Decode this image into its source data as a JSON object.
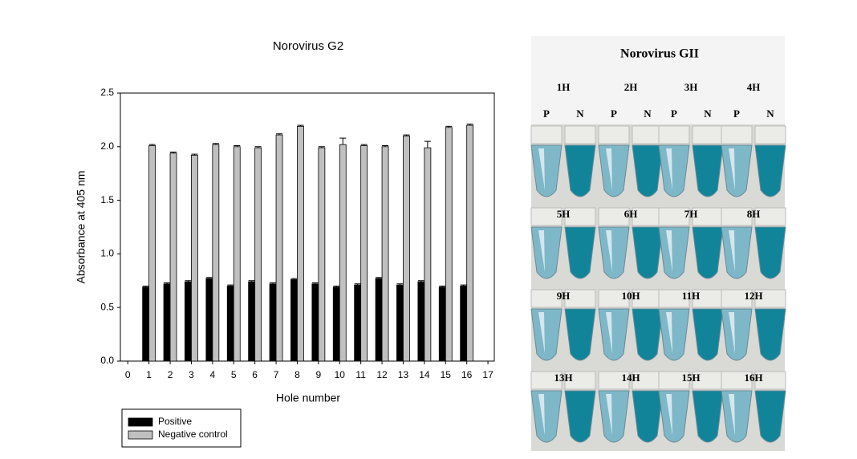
{
  "chart_data": {
    "type": "bar",
    "title": "Norovirus G2",
    "xlabel": "Hole number",
    "ylabel": "Absorbance at 405 nm",
    "x": [
      1,
      2,
      3,
      4,
      5,
      6,
      7,
      8,
      9,
      10,
      11,
      12,
      13,
      14,
      15,
      16
    ],
    "series": [
      {
        "name": "Positive",
        "color": "#000000",
        "values": [
          0.69,
          0.72,
          0.74,
          0.77,
          0.7,
          0.74,
          0.72,
          0.76,
          0.72,
          0.69,
          0.71,
          0.77,
          0.71,
          0.74,
          0.69,
          0.7
        ],
        "errors": [
          0.01,
          0.01,
          0.01,
          0.01,
          0.01,
          0.01,
          0.01,
          0.01,
          0.01,
          0.01,
          0.01,
          0.01,
          0.01,
          0.01,
          0.01,
          0.01
        ]
      },
      {
        "name": "Negative control",
        "color": "#c0c0c0",
        "values": [
          2.01,
          1.94,
          1.92,
          2.02,
          2.0,
          1.99,
          2.11,
          2.19,
          1.99,
          2.02,
          2.01,
          2.0,
          2.1,
          1.99,
          2.18,
          2.2
        ],
        "errors": [
          0.01,
          0.01,
          0.01,
          0.01,
          0.01,
          0.01,
          0.01,
          0.01,
          0.01,
          0.06,
          0.01,
          0.01,
          0.01,
          0.06,
          0.01,
          0.01
        ]
      }
    ],
    "xlim": [
      -0.35,
      17.3
    ],
    "xticks": [
      0,
      1,
      2,
      3,
      4,
      5,
      6,
      7,
      8,
      9,
      10,
      11,
      12,
      13,
      14,
      15,
      16,
      17
    ],
    "ylim": [
      0,
      2.5
    ],
    "yticks": [
      {
        "value": 0,
        "label": "0.0"
      },
      {
        "value": 0.5,
        "label": "0.5"
      },
      {
        "value": 1,
        "label": "1.0"
      },
      {
        "value": 1.5,
        "label": "1.5"
      },
      {
        "value": 2,
        "label": "2.0"
      },
      {
        "value": 2.5,
        "label": "2.5"
      }
    ],
    "grid": false,
    "legend": "bottom-left"
  },
  "photo": {
    "title": "Norovirus GII",
    "hole_labels": [
      "1H",
      "2H",
      "3H",
      "4H",
      "5H",
      "6H",
      "7H",
      "8H",
      "9H",
      "10H",
      "11H",
      "12H",
      "13H",
      "14H",
      "15H",
      "16H"
    ],
    "tube_labels": [
      "P",
      "N"
    ]
  }
}
